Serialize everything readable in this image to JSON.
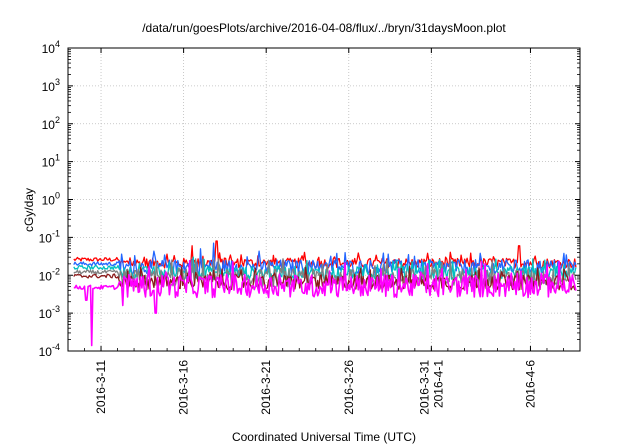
{
  "chart_data": {
    "type": "line",
    "title": "/data/run/goesPlots/archive/2016-04-08/flux/../bryn/31daysMoon.plot",
    "xlabel": "Coordinated Universal Time (UTC)",
    "ylabel": "cGy/day",
    "yscale": "log",
    "ylim": [
      0.0001,
      10000
    ],
    "xlim": [
      "2016-03-09",
      "2016-04-09"
    ],
    "grid": true,
    "y_ticks": [
      {
        "base": "10",
        "exp": "-4"
      },
      {
        "base": "10",
        "exp": "-3"
      },
      {
        "base": "10",
        "exp": "-2"
      },
      {
        "base": "10",
        "exp": "-1"
      },
      {
        "base": "10",
        "exp": "0"
      },
      {
        "base": "10",
        "exp": "1"
      },
      {
        "base": "10",
        "exp": "2"
      },
      {
        "base": "10",
        "exp": "3"
      },
      {
        "base": "10",
        "exp": "4"
      }
    ],
    "x_ticks": [
      {
        "day": 2,
        "lines": [
          "2016-3-11"
        ]
      },
      {
        "day": 7,
        "lines": [
          "2016-3-16"
        ]
      },
      {
        "day": 12,
        "lines": [
          "2016-3-21"
        ]
      },
      {
        "day": 17,
        "lines": [
          "2016-3-26"
        ]
      },
      {
        "day": 22,
        "lines": [
          "2016-3-31",
          "2016-4-1"
        ]
      },
      {
        "day": 28,
        "lines": [
          "2016-4-6"
        ]
      }
    ],
    "series": [
      {
        "color": "#ff0000",
        "level": 0.021,
        "scatter": 0.3,
        "start_level": 0.026,
        "spikes": [
          [
            7.5,
            0.06
          ],
          [
            9.0,
            0.08
          ],
          [
            14.3,
            0.04
          ],
          [
            27.3,
            0.06
          ]
        ]
      },
      {
        "color": "#2266ff",
        "level": 0.0165,
        "scatter": 0.45,
        "start_level": 0.02,
        "spikes": [
          [
            8.0,
            0.05
          ],
          [
            8.8,
            0.07
          ],
          [
            20.6,
            0.035
          ]
        ]
      },
      {
        "color": "#00c0c0",
        "level": 0.0115,
        "scatter": 0.4,
        "start_level": 0.016,
        "spikes": [
          [
            7.6,
            0.03
          ],
          [
            19.9,
            0.025
          ]
        ]
      },
      {
        "color": "#808080",
        "level": 0.0085,
        "scatter": 0.55,
        "start_level": 0.012,
        "spikes": []
      },
      {
        "color": "#8b1a1a",
        "level": 0.0065,
        "scatter": 0.45,
        "start_level": 0.0095,
        "spikes": []
      },
      {
        "color": "#ff00ff",
        "level": 0.0052,
        "scatter": 0.7,
        "start_level": 0.0048,
        "spikes": [
          [
            1.45,
            0.00014
          ],
          [
            1.1,
            0.0022
          ],
          [
            3.3,
            0.0016
          ],
          [
            5.3,
            0.001
          ]
        ]
      }
    ]
  }
}
